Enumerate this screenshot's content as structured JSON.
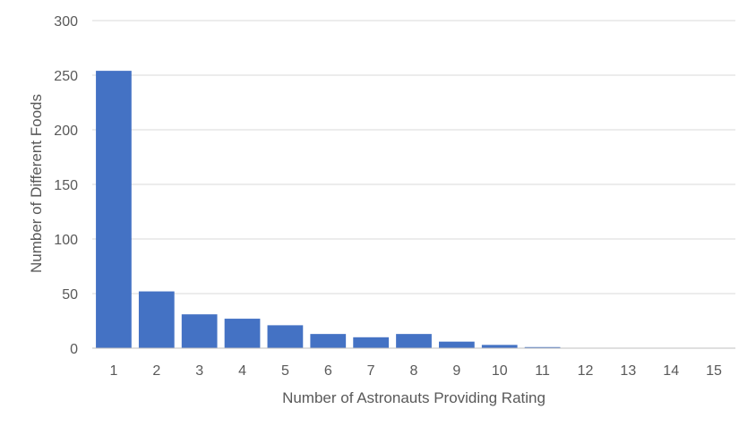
{
  "chart_data": {
    "type": "bar",
    "categories": [
      "1",
      "2",
      "3",
      "4",
      "5",
      "6",
      "7",
      "8",
      "9",
      "10",
      "11",
      "12",
      "13",
      "14",
      "15"
    ],
    "values": [
      254,
      52,
      31,
      27,
      21,
      13,
      10,
      13,
      6,
      3,
      1,
      0,
      0,
      0,
      0
    ],
    "title": "",
    "xlabel": "Number of Astronauts Providing Rating",
    "ylabel": "Number of Different Foods",
    "ylim": [
      0,
      300
    ],
    "yticks": [
      "0",
      "50",
      "100",
      "150",
      "200",
      "250",
      "300"
    ],
    "grid": true,
    "legend": "none",
    "colors": {
      "bar": "#4472C4",
      "grid": "#D9D9D9",
      "axis": "#BFBFBF",
      "text": "#595959"
    }
  }
}
